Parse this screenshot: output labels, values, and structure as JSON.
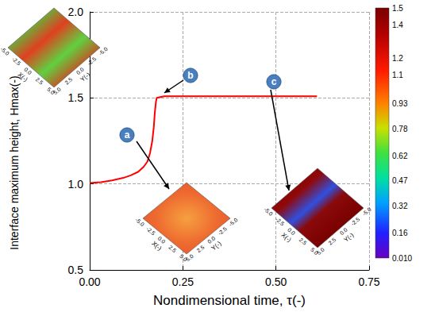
{
  "chart_data": {
    "type": "line",
    "x_label": "Nondimensional time, τ(-)",
    "y_label": "Interface maximum height, Hmax(-)",
    "x": [
      0,
      0.03,
      0.06,
      0.09,
      0.11,
      0.13,
      0.145,
      0.155,
      0.162,
      0.168,
      0.172,
      0.175,
      0.178,
      0.18,
      0.2,
      0.3,
      0.4,
      0.5,
      0.61
    ],
    "values": [
      1.005,
      1.01,
      1.02,
      1.035,
      1.05,
      1.07,
      1.1,
      1.13,
      1.18,
      1.25,
      1.33,
      1.42,
      1.48,
      1.5,
      1.51,
      1.51,
      1.51,
      1.51,
      1.51
    ],
    "color": "#ff0000",
    "xlim": [
      0,
      0.75
    ],
    "xticks": [
      {
        "value": 0,
        "label": "0.00"
      },
      {
        "value": 0.25,
        "label": "0.25"
      },
      {
        "value": 0.5,
        "label": "0.50"
      },
      {
        "value": 0.75,
        "label": "0.75"
      }
    ],
    "ylim": [
      0.5,
      2.0
    ],
    "yticks": [
      {
        "value": 0.5,
        "label": "0.5"
      },
      {
        "value": 1,
        "label": "1.0"
      },
      {
        "value": 1.5,
        "label": "1.5"
      },
      {
        "value": 2,
        "label": "2.0"
      }
    ],
    "grid": true,
    "colorbar": {
      "range": [
        0.01,
        1.5
      ],
      "ticks": [
        1.5,
        1.4,
        1.2,
        1.1,
        0.93,
        0.78,
        0.62,
        0.47,
        0.32,
        0.16,
        {
          "value": 0.01,
          "label": "0.010"
        }
      ]
    },
    "insets": [
      {
        "label": "a",
        "x_label": "X(-)",
        "y_label": "Y(-)",
        "xlim": [
          -5,
          5
        ],
        "ylim": [
          -5,
          5
        ],
        "xticks": [
          {
            "value": -5,
            "label": "-5.0"
          },
          {
            "value": -2.5,
            "label": "-2.5"
          },
          {
            "value": 0,
            "label": "0.0"
          },
          {
            "value": 2.5,
            "label": "2.5"
          },
          {
            "value": 5,
            "label": "5.0"
          }
        ],
        "yticks": [
          {
            "value": -5,
            "label": "-5.0"
          },
          {
            "value": -2.5,
            "label": "-2.5"
          },
          {
            "value": 0,
            "label": "0.0"
          },
          {
            "value": 2.5,
            "label": "2.5"
          },
          {
            "value": 5,
            "label": "5.0"
          }
        ]
      },
      {
        "label": "b",
        "x_label": "X(-)",
        "y_label": "Y(-)",
        "xlim": [
          -5,
          5
        ],
        "ylim": [
          -5,
          5
        ],
        "xticks": [
          {
            "value": -5,
            "label": "-5.0"
          },
          {
            "value": -2.5,
            "label": "-2.5"
          },
          {
            "value": 0,
            "label": "0.0"
          },
          {
            "value": 2.5,
            "label": "2.5"
          },
          {
            "value": 5,
            "label": "5.0"
          }
        ],
        "yticks": [
          {
            "value": -5,
            "label": "-5.0"
          },
          {
            "value": -2.5,
            "label": "-2.5"
          },
          {
            "value": 0,
            "label": "0.0"
          },
          {
            "value": 2.5,
            "label": "2.5"
          },
          {
            "value": 5,
            "label": "5.0"
          }
        ]
      },
      {
        "label": "c",
        "x_label": "X(-)",
        "y_label": "Y(-)",
        "xlim": [
          -5,
          5
        ],
        "ylim": [
          -5,
          5
        ],
        "xticks": [
          {
            "value": -5,
            "label": "-5.0"
          },
          {
            "value": -2.5,
            "label": "-2.5"
          },
          {
            "value": 0,
            "label": "0.0"
          },
          {
            "value": 2.5,
            "label": "2.5"
          },
          {
            "value": 5,
            "label": "5.0"
          }
        ],
        "yticks": [
          {
            "value": -5,
            "label": "-5.0"
          },
          {
            "value": -2.5,
            "label": "-2.5"
          },
          {
            "value": 0,
            "label": "0.0"
          },
          {
            "value": 2.5,
            "label": "2.5"
          },
          {
            "value": 5,
            "label": "5.0"
          }
        ]
      }
    ]
  }
}
